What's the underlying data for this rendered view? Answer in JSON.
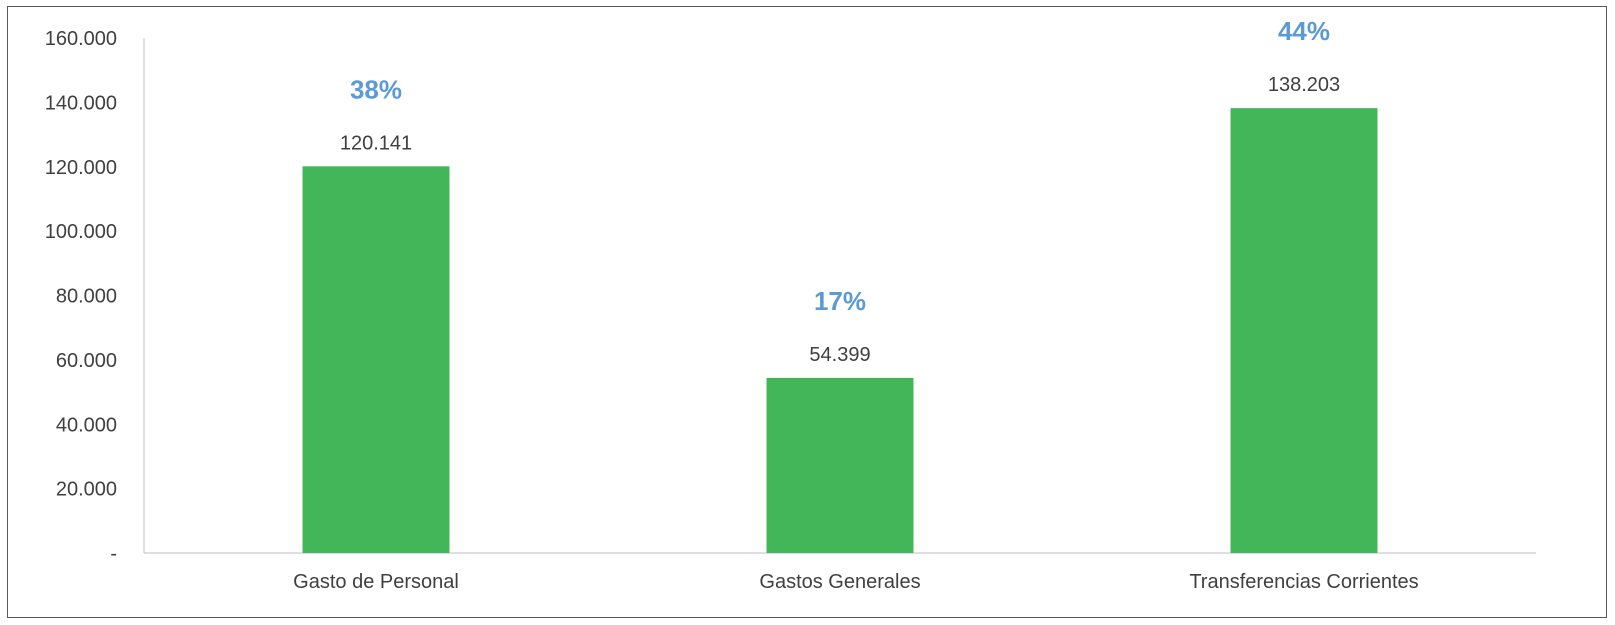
{
  "chart_data": {
    "type": "bar",
    "categories": [
      "Gasto de Personal",
      "Gastos Generales",
      "Transferencias Corrientes"
    ],
    "values": [
      120141,
      54399,
      138203
    ],
    "value_labels": [
      "120.141",
      "54.399",
      "138.203"
    ],
    "percent_labels": [
      "38%",
      "17%",
      "44%"
    ],
    "y_ticks": [
      "-",
      "20.000",
      "40.000",
      "60.000",
      "80.000",
      "100.000",
      "120.000",
      "140.000",
      "160.000"
    ],
    "ylim": [
      0,
      160000
    ],
    "grid": false,
    "title": "",
    "xlabel": "",
    "ylabel": ""
  },
  "colors": {
    "bar": "#44b65a",
    "percent": "#5b9bd5",
    "axis": "#bfbfbf",
    "text": "#404040"
  }
}
